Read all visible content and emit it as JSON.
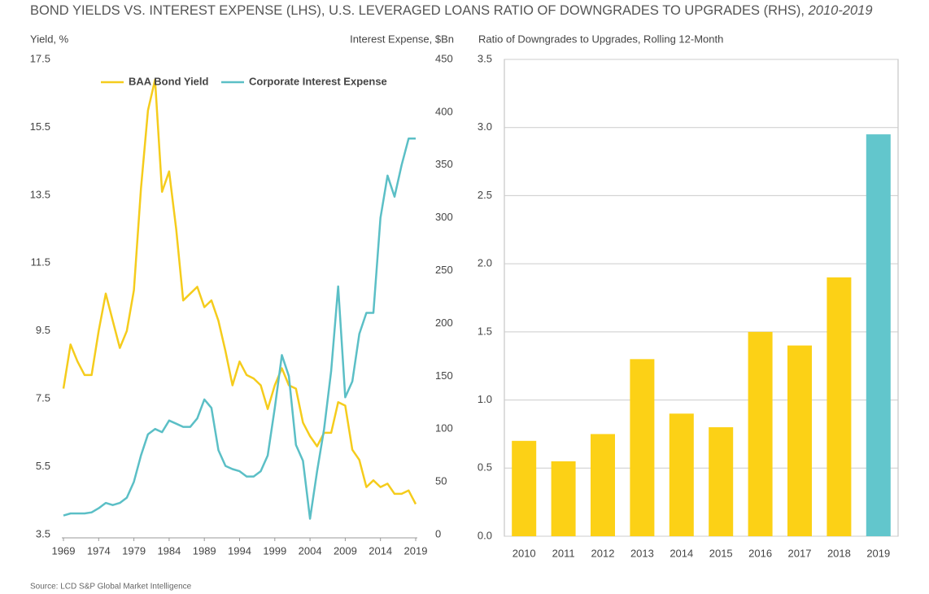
{
  "title": {
    "main": "BOND YIELDS VS. INTEREST EXPENSE (LHS), U.S. LEVERAGED LOANS RATIO OF DOWNGRADES TO UPGRADES (RHS),",
    "years": "2010-2019"
  },
  "source": "Source: LCD S&P Global Market Intelligence",
  "chart_data": [
    {
      "type": "line",
      "ylabel": "Yield, %",
      "y2label": "Interest Expense, $Bn",
      "legend": "top",
      "x": [
        1969,
        1970,
        1971,
        1972,
        1973,
        1974,
        1975,
        1976,
        1977,
        1978,
        1979,
        1980,
        1981,
        1982,
        1983,
        1984,
        1985,
        1986,
        1987,
        1988,
        1989,
        1990,
        1991,
        1992,
        1993,
        1994,
        1995,
        1996,
        1997,
        1998,
        1999,
        2000,
        2001,
        2002,
        2003,
        2004,
        2005,
        2006,
        2007,
        2008,
        2009,
        2010,
        2011,
        2012,
        2013,
        2014,
        2015,
        2016,
        2017,
        2018,
        2019
      ],
      "xlim": [
        1969,
        2019
      ],
      "xticks": [
        1969,
        1974,
        1979,
        1984,
        1989,
        1994,
        1999,
        2004,
        2009,
        2014,
        2019
      ],
      "ylim": [
        3.5,
        17.5
      ],
      "yticks": [
        3.5,
        5.5,
        7.5,
        9.5,
        11.5,
        13.5,
        15.5,
        17.5
      ],
      "y2lim": [
        0,
        450
      ],
      "y2ticks": [
        0,
        50,
        100,
        150,
        200,
        250,
        300,
        350,
        400,
        450
      ],
      "series": [
        {
          "name": "BAA Bond Yield",
          "color": "#f5cc1c",
          "values": [
            7.8,
            9.1,
            8.6,
            8.2,
            8.2,
            9.5,
            10.6,
            9.8,
            9.0,
            9.5,
            10.7,
            13.7,
            16.0,
            16.9,
            13.6,
            14.2,
            12.5,
            10.4,
            10.6,
            10.8,
            10.2,
            10.4,
            9.8,
            8.9,
            7.9,
            8.6,
            8.2,
            8.1,
            7.9,
            7.2,
            7.9,
            8.4,
            7.9,
            7.8,
            6.8,
            6.4,
            6.1,
            6.5,
            6.5,
            7.4,
            7.3,
            6.0,
            5.7,
            4.9,
            5.1,
            4.9,
            5.0,
            4.7,
            4.7,
            4.8,
            4.4
          ]
        },
        {
          "name": "Corporate Interest Expense",
          "color": "#5bbfc6",
          "axis": "y2",
          "values": [
            18,
            20,
            20,
            20,
            21,
            25,
            30,
            28,
            30,
            35,
            50,
            75,
            95,
            100,
            97,
            108,
            105,
            102,
            102,
            110,
            128,
            120,
            80,
            65,
            62,
            60,
            55,
            55,
            60,
            75,
            120,
            170,
            150,
            85,
            70,
            15,
            60,
            100,
            155,
            235,
            130,
            145,
            190,
            210,
            210,
            300,
            340,
            320,
            350,
            375,
            375
          ]
        }
      ]
    },
    {
      "type": "bar",
      "ylabel": "Ratio of Downgrades to Upgrades, Rolling 12-Month",
      "categories": [
        "2010",
        "2011",
        "2012",
        "2013",
        "2014",
        "2015",
        "2016",
        "2017",
        "2018",
        "2019"
      ],
      "values": [
        0.7,
        0.55,
        0.75,
        1.3,
        0.9,
        0.8,
        1.5,
        1.4,
        1.9,
        2.95
      ],
      "colors": [
        "#fcd116",
        "#fcd116",
        "#fcd116",
        "#fcd116",
        "#fcd116",
        "#fcd116",
        "#fcd116",
        "#fcd116",
        "#fcd116",
        "#62c6cc"
      ],
      "ylim": [
        0,
        3.5
      ],
      "yticks": [
        {
          "value": 0,
          "label": "0.0"
        },
        0.5,
        {
          "value": 1,
          "label": "1.0"
        },
        1.5,
        {
          "value": 2,
          "label": "2.0"
        },
        2.5,
        {
          "value": 3,
          "label": "3.0"
        },
        3.5
      ],
      "grid": true
    }
  ]
}
